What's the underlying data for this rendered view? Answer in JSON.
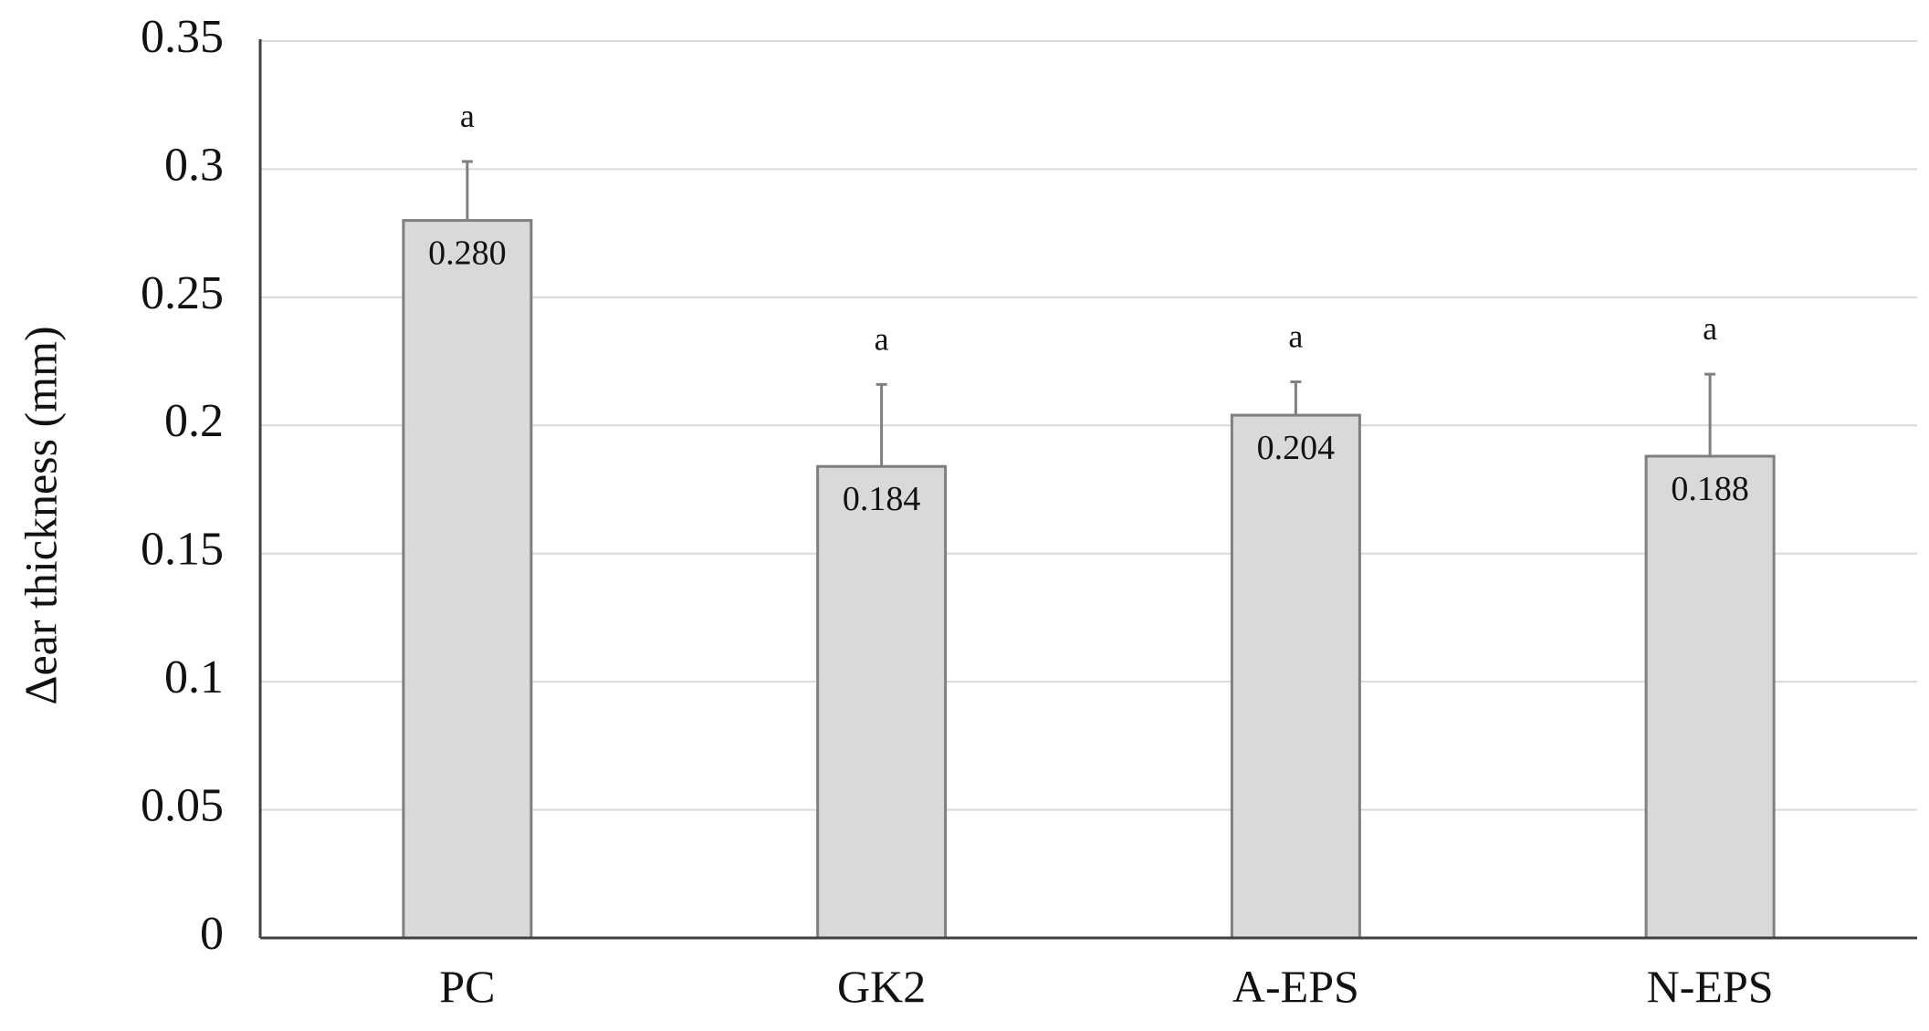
{
  "chart_data": {
    "type": "bar",
    "title": "",
    "xlabel": "",
    "ylabel": "Δear thickness (mm)",
    "categories": [
      "PC",
      "GK2",
      "A-EPS",
      "N-EPS"
    ],
    "values": [
      0.28,
      0.184,
      0.204,
      0.188
    ],
    "value_labels": [
      "0.280",
      "0.184",
      "0.204",
      "0.188"
    ],
    "error_upper": [
      0.303,
      0.216,
      0.217,
      0.22
    ],
    "significance_letters": [
      "a",
      "a",
      "a",
      "a"
    ],
    "ylim": [
      0,
      0.35
    ],
    "yticks": [
      0,
      0.05,
      0.1,
      0.15,
      0.2,
      0.25,
      0.3,
      0.35
    ],
    "ytick_labels": [
      "0",
      "0.05",
      "0.1",
      "0.15",
      "0.2",
      "0.25",
      "0.3",
      "0.35"
    ],
    "grid": true,
    "legend": "none"
  },
  "colors": {
    "bar_fill": "#d9d9d9",
    "bar_stroke": "#7f7f7f",
    "grid": "#d9d9d9",
    "axis": "#404040",
    "error_bar": "#7f7f7f"
  }
}
